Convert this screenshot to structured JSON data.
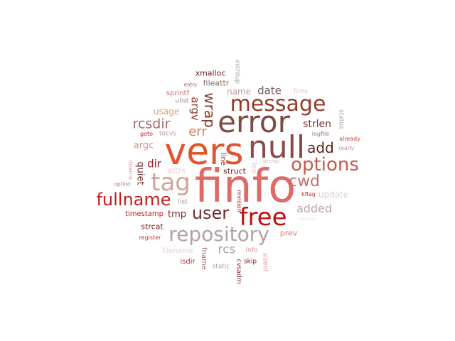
{
  "words": [
    {
      "text": "finfo",
      "color": "#e06a6a",
      "vertical": false
    },
    {
      "text": "vers",
      "color": "#e4532b",
      "vertical": false
    },
    {
      "text": "error",
      "color": "#7e4b43",
      "vertical": false
    },
    {
      "text": "null",
      "color": "#8a4a4a",
      "vertical": false
    },
    {
      "text": "message",
      "color": "#933b2a",
      "vertical": false
    },
    {
      "text": "tag",
      "color": "#d1a39a",
      "vertical": false
    },
    {
      "text": "repository",
      "color": "#b3a2a2",
      "vertical": false
    },
    {
      "text": "free",
      "color": "#c01010",
      "vertical": false
    },
    {
      "text": "fullname",
      "color": "#c41e1e",
      "vertical": false
    },
    {
      "text": "options",
      "color": "#c75a4a",
      "vertical": false
    },
    {
      "text": "user",
      "color": "#6e2e2e",
      "vertical": false
    },
    {
      "text": "cwd",
      "color": "#c27070",
      "vertical": false
    },
    {
      "text": "add",
      "color": "#5c1f14",
      "vertical": false
    },
    {
      "text": "rcsdir",
      "color": "#a86a6a",
      "vertical": false
    },
    {
      "text": "err",
      "color": "#e07a5a",
      "vertical": false
    },
    {
      "text": "rcs",
      "color": "#a6a6a6",
      "vertical": false
    },
    {
      "text": "added",
      "color": "#bfa3a3",
      "vertical": false
    },
    {
      "text": "date",
      "color": "#7a5a5a",
      "vertical": false
    },
    {
      "text": "strlen",
      "color": "#7a3030",
      "vertical": false
    },
    {
      "text": "dir",
      "color": "#a82020",
      "vertical": false
    },
    {
      "text": "argc",
      "color": "#c99a8a",
      "vertical": false
    },
    {
      "text": "tmp",
      "color": "#7a2626",
      "vertical": false
    },
    {
      "text": "name",
      "color": "#bf9a9a",
      "vertical": false
    },
    {
      "text": "usage",
      "color": "#e09a7a",
      "vertical": false
    },
    {
      "text": "struct",
      "color": "#6e1c1c",
      "vertical": false
    },
    {
      "text": "update",
      "color": "#e0d0d0",
      "vertical": false
    },
    {
      "text": "attrs",
      "color": "#e8caca",
      "vertical": false
    },
    {
      "text": "xmalloc",
      "color": "#6e1818",
      "vertical": false
    },
    {
      "text": "fileattr",
      "color": "#8a6a6a",
      "vertical": false
    },
    {
      "text": "timestamp",
      "color": "#b81a1a",
      "vertical": false
    },
    {
      "text": "strcat",
      "color": "#7a1212",
      "vertical": false
    },
    {
      "text": "prev",
      "color": "#e07a5a",
      "vertical": false
    },
    {
      "text": "files",
      "color": "#f0c8c8",
      "vertical": false
    },
    {
      "text": "sprintf",
      "color": "#d06a6a",
      "vertical": false
    },
    {
      "text": "ulist",
      "color": "#9a8a8a",
      "vertical": false
    },
    {
      "text": "tocvs",
      "color": "#b09a9a",
      "vertical": false
    },
    {
      "text": "goto",
      "color": "#c02020",
      "vertical": false
    },
    {
      "text": "entry",
      "color": "#a05050",
      "vertical": false
    },
    {
      "text": "logfile",
      "color": "#9a7a7a",
      "vertical": false
    },
    {
      "text": "already",
      "color": "#c04848",
      "vertical": false
    },
    {
      "text": "really",
      "color": "#e08a8a",
      "vertical": false
    },
    {
      "text": "kflag",
      "color": "#c03030",
      "vertical": false
    },
    {
      "text": "list",
      "color": "#9a8a8a",
      "vertical": false
    },
    {
      "text": "filename",
      "color": "#f0caca",
      "vertical": false
    },
    {
      "text": "isdir",
      "color": "#c02828",
      "vertical": false
    },
    {
      "text": "register",
      "color": "#c03a3a",
      "vertical": false
    },
    {
      "text": "info",
      "color": "#e08a8a",
      "vertical": false
    },
    {
      "text": "skip",
      "color": "#8a1818",
      "vertical": false
    },
    {
      "text": "static",
      "color": "#b09a9a",
      "vertical": false
    },
    {
      "text": "optind",
      "color": "#a87070",
      "vertical": false
    },
    {
      "text": "strcmp",
      "color": "#e0b0b0",
      "vertical": false
    },
    {
      "text": "ndriver",
      "color": "#f0dede",
      "vertical": false
    },
    {
      "text": "wrap",
      "color": "#8a3a2a",
      "vertical": true
    },
    {
      "text": "argv",
      "color": "#8a3a2a",
      "vertical": true
    },
    {
      "text": "quiet",
      "color": "#6e2a2a",
      "vertical": true
    },
    {
      "text": "line",
      "color": "#b02020",
      "vertical": true
    },
    {
      "text": "len",
      "color": "#d0c0c0",
      "vertical": true
    },
    {
      "text": "xstrdup",
      "color": "#b0a0a0",
      "vertical": true
    },
    {
      "text": "status",
      "color": "#b0a0a0",
      "vertical": true
    },
    {
      "text": "dname",
      "color": "#e0a0a0",
      "vertical": true
    },
    {
      "text": "revision",
      "color": "#8a2020",
      "vertical": true
    },
    {
      "text": "fname",
      "color": "#a86a6a",
      "vertical": true
    },
    {
      "text": "cvsadm",
      "color": "#8a2020",
      "vertical": true
    },
    {
      "text": "sizeof",
      "color": "#e09a9a",
      "vertical": true
    }
  ]
}
